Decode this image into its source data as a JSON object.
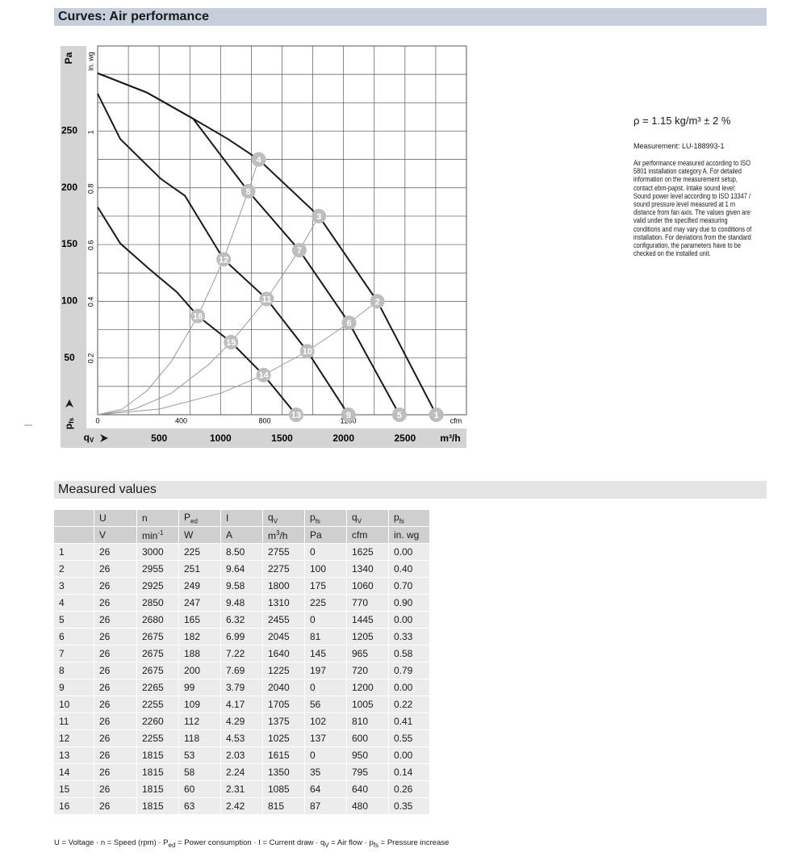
{
  "header": {
    "title": "Curves: Air performance"
  },
  "chart_data": {
    "type": "line",
    "x_label": "m³/h",
    "x2_label": "cfm",
    "y_label": "Pa",
    "y2_label": "in. wg",
    "x_symbol": {
      "text": "q",
      "sub": "V"
    },
    "y_symbol": {
      "text": "p",
      "sub": "fs"
    },
    "xlim": [
      0,
      3000
    ],
    "xticks": [
      500,
      1000,
      1500,
      2000,
      2500
    ],
    "x2lim": [
      0,
      1766
    ],
    "x2ticks": [
      0,
      400,
      800,
      1200
    ],
    "ylim": [
      0,
      325
    ],
    "yticks": [
      50,
      100,
      150,
      200,
      250
    ],
    "y2lim": [
      0,
      1.305
    ],
    "y2ticks": [
      0.2,
      0.4,
      0.6,
      0.8,
      1
    ],
    "xgrid": [
      250,
      500,
      750,
      1000,
      1250,
      1500,
      1750,
      2000,
      2250,
      2500,
      2750
    ],
    "ygrid": [
      25,
      50,
      75,
      100,
      125,
      150,
      175,
      200,
      225,
      250,
      275,
      300
    ],
    "series": [
      {
        "color": "#1a1a1a",
        "x": [
          0,
          400,
          776,
          1060,
          1310,
          1800,
          2275,
          2755
        ],
        "values": [
          301,
          284,
          261,
          243,
          225,
          175,
          100,
          0
        ]
      },
      {
        "color": "#1a1a1a",
        "x": [
          0,
          400,
          776,
          1000,
          1225,
          1640,
          2045,
          2455
        ],
        "values": [
          301,
          284,
          261,
          229,
          197,
          145,
          81,
          0
        ]
      },
      {
        "color": "#1a1a1a",
        "x": [
          0,
          184,
          513,
          710,
          1025,
          1375,
          1705,
          2040
        ],
        "values": [
          283,
          243,
          208,
          193,
          137,
          102,
          56,
          0
        ]
      },
      {
        "color": "#1a1a1a",
        "x": [
          0,
          184,
          414,
          645,
          815,
          1085,
          1350,
          1615
        ],
        "values": [
          183,
          151,
          129,
          108,
          87,
          64,
          35,
          0
        ]
      },
      {
        "color": "#999999",
        "x": [
          0,
          500,
          1000,
          1350,
          1705,
          2045,
          2275
        ],
        "values": [
          0,
          5,
          19,
          35,
          56,
          81,
          100
        ]
      },
      {
        "color": "#999999",
        "x": [
          0,
          300,
          600,
          900,
          1085,
          1375,
          1640,
          1800
        ],
        "values": [
          0,
          5,
          19,
          44,
          64,
          102,
          145,
          175
        ]
      },
      {
        "color": "#999999",
        "x": [
          0,
          200,
          400,
          600,
          815,
          1025,
          1225,
          1310
        ],
        "values": [
          0,
          5,
          21,
          47,
          87,
          137,
          197,
          225
        ]
      }
    ],
    "points": [
      {
        "label": "1",
        "x": 2755,
        "y": 0
      },
      {
        "label": "2",
        "x": 2275,
        "y": 100
      },
      {
        "label": "3",
        "x": 1800,
        "y": 175
      },
      {
        "label": "4",
        "x": 1310,
        "y": 225
      },
      {
        "label": "5",
        "x": 2455,
        "y": 0
      },
      {
        "label": "6",
        "x": 2045,
        "y": 81
      },
      {
        "label": "7",
        "x": 1640,
        "y": 145
      },
      {
        "label": "8",
        "x": 1225,
        "y": 197
      },
      {
        "label": "9",
        "x": 2040,
        "y": 0
      },
      {
        "label": "10",
        "x": 1705,
        "y": 56
      },
      {
        "label": "11",
        "x": 1375,
        "y": 102
      },
      {
        "label": "12",
        "x": 1025,
        "y": 137
      },
      {
        "label": "13",
        "x": 1615,
        "y": 0
      },
      {
        "label": "14",
        "x": 1350,
        "y": 35
      },
      {
        "label": "15",
        "x": 1085,
        "y": 64
      },
      {
        "label": "16",
        "x": 815,
        "y": 87
      }
    ]
  },
  "info": {
    "density": "ρ = 1.15 kg/m³ ± 2 %",
    "measurement": "Measurement: LU-188993-1",
    "lines": [
      "Air performance measured according to ISO",
      "5801 installation category A. For detailed",
      "information on the measurement setup,",
      "contact ebm-papst. Intake sound level:",
      "Sound power level according to ISO 13347 /",
      "sound pressure level measured at 1 m",
      "distance from fan axis. The values given are",
      "valid under the specified measuring",
      "conditions and may vary due to conditions of",
      "installation. For deviations from the standard",
      "configuration, the parameters have to be",
      "checked on the installed unit."
    ]
  },
  "measured": {
    "title": "Measured values",
    "table": {
      "header": [
        {
          "text": "U"
        },
        {
          "text": "n"
        },
        {
          "text": "P",
          "sub": "ed"
        },
        {
          "text": "I"
        },
        {
          "text": "q",
          "sub": "V"
        },
        {
          "text": "p",
          "sub": "fs"
        },
        {
          "text": "q",
          "sub": "V"
        },
        {
          "text": "p",
          "sub": "fs"
        }
      ],
      "units": [
        {
          "text": "V"
        },
        {
          "text": "min",
          "sup": "-1"
        },
        {
          "text": "W"
        },
        {
          "text": "A"
        },
        {
          "text": "m",
          "sup": "3",
          "after": "/h"
        },
        {
          "text": "Pa"
        },
        {
          "text": "cfm"
        },
        {
          "text": "in. wg"
        }
      ],
      "rows": [
        [
          "1",
          "26",
          "3000",
          "225",
          "8.50",
          "2755",
          "0",
          "1625",
          "0.00"
        ],
        [
          "2",
          "26",
          "2955",
          "251",
          "9.64",
          "2275",
          "100",
          "1340",
          "0.40"
        ],
        [
          "3",
          "26",
          "2925",
          "249",
          "9.58",
          "1800",
          "175",
          "1060",
          "0.70"
        ],
        [
          "4",
          "26",
          "2850",
          "247",
          "9.48",
          "1310",
          "225",
          "770",
          "0.90"
        ],
        [
          "5",
          "26",
          "2680",
          "165",
          "6.32",
          "2455",
          "0",
          "1445",
          "0.00"
        ],
        [
          "6",
          "26",
          "2675",
          "182",
          "6.99",
          "2045",
          "81",
          "1205",
          "0.33"
        ],
        [
          "7",
          "26",
          "2675",
          "188",
          "7.22",
          "1640",
          "145",
          "965",
          "0.58"
        ],
        [
          "8",
          "26",
          "2675",
          "200",
          "7.69",
          "1225",
          "197",
          "720",
          "0.79"
        ],
        [
          "9",
          "26",
          "2265",
          "99",
          "3.79",
          "2040",
          "0",
          "1200",
          "0.00"
        ],
        [
          "10",
          "26",
          "2255",
          "109",
          "4.17",
          "1705",
          "56",
          "1005",
          "0.22"
        ],
        [
          "11",
          "26",
          "2260",
          "112",
          "4.29",
          "1375",
          "102",
          "810",
          "0.41"
        ],
        [
          "12",
          "26",
          "2255",
          "118",
          "4.53",
          "1025",
          "137",
          "600",
          "0.55"
        ],
        [
          "13",
          "26",
          "1815",
          "53",
          "2.03",
          "1615",
          "0",
          "950",
          "0.00"
        ],
        [
          "14",
          "26",
          "1815",
          "58",
          "2.24",
          "1350",
          "35",
          "795",
          "0.14"
        ],
        [
          "15",
          "26",
          "1815",
          "60",
          "2.31",
          "1085",
          "64",
          "640",
          "0.26"
        ],
        [
          "16",
          "26",
          "1815",
          "63",
          "2.42",
          "815",
          "87",
          "480",
          "0.35"
        ]
      ]
    },
    "footer": [
      {
        "text": "U = Voltage · n = Speed (rpm) · P"
      },
      {
        "sub": "ed"
      },
      {
        "text": " = Power consumption · I = Current draw · q"
      },
      {
        "sub": "V"
      },
      {
        "text": " = Air flow · p"
      },
      {
        "sub": "fs"
      },
      {
        "text": " = Pressure increase"
      }
    ]
  }
}
